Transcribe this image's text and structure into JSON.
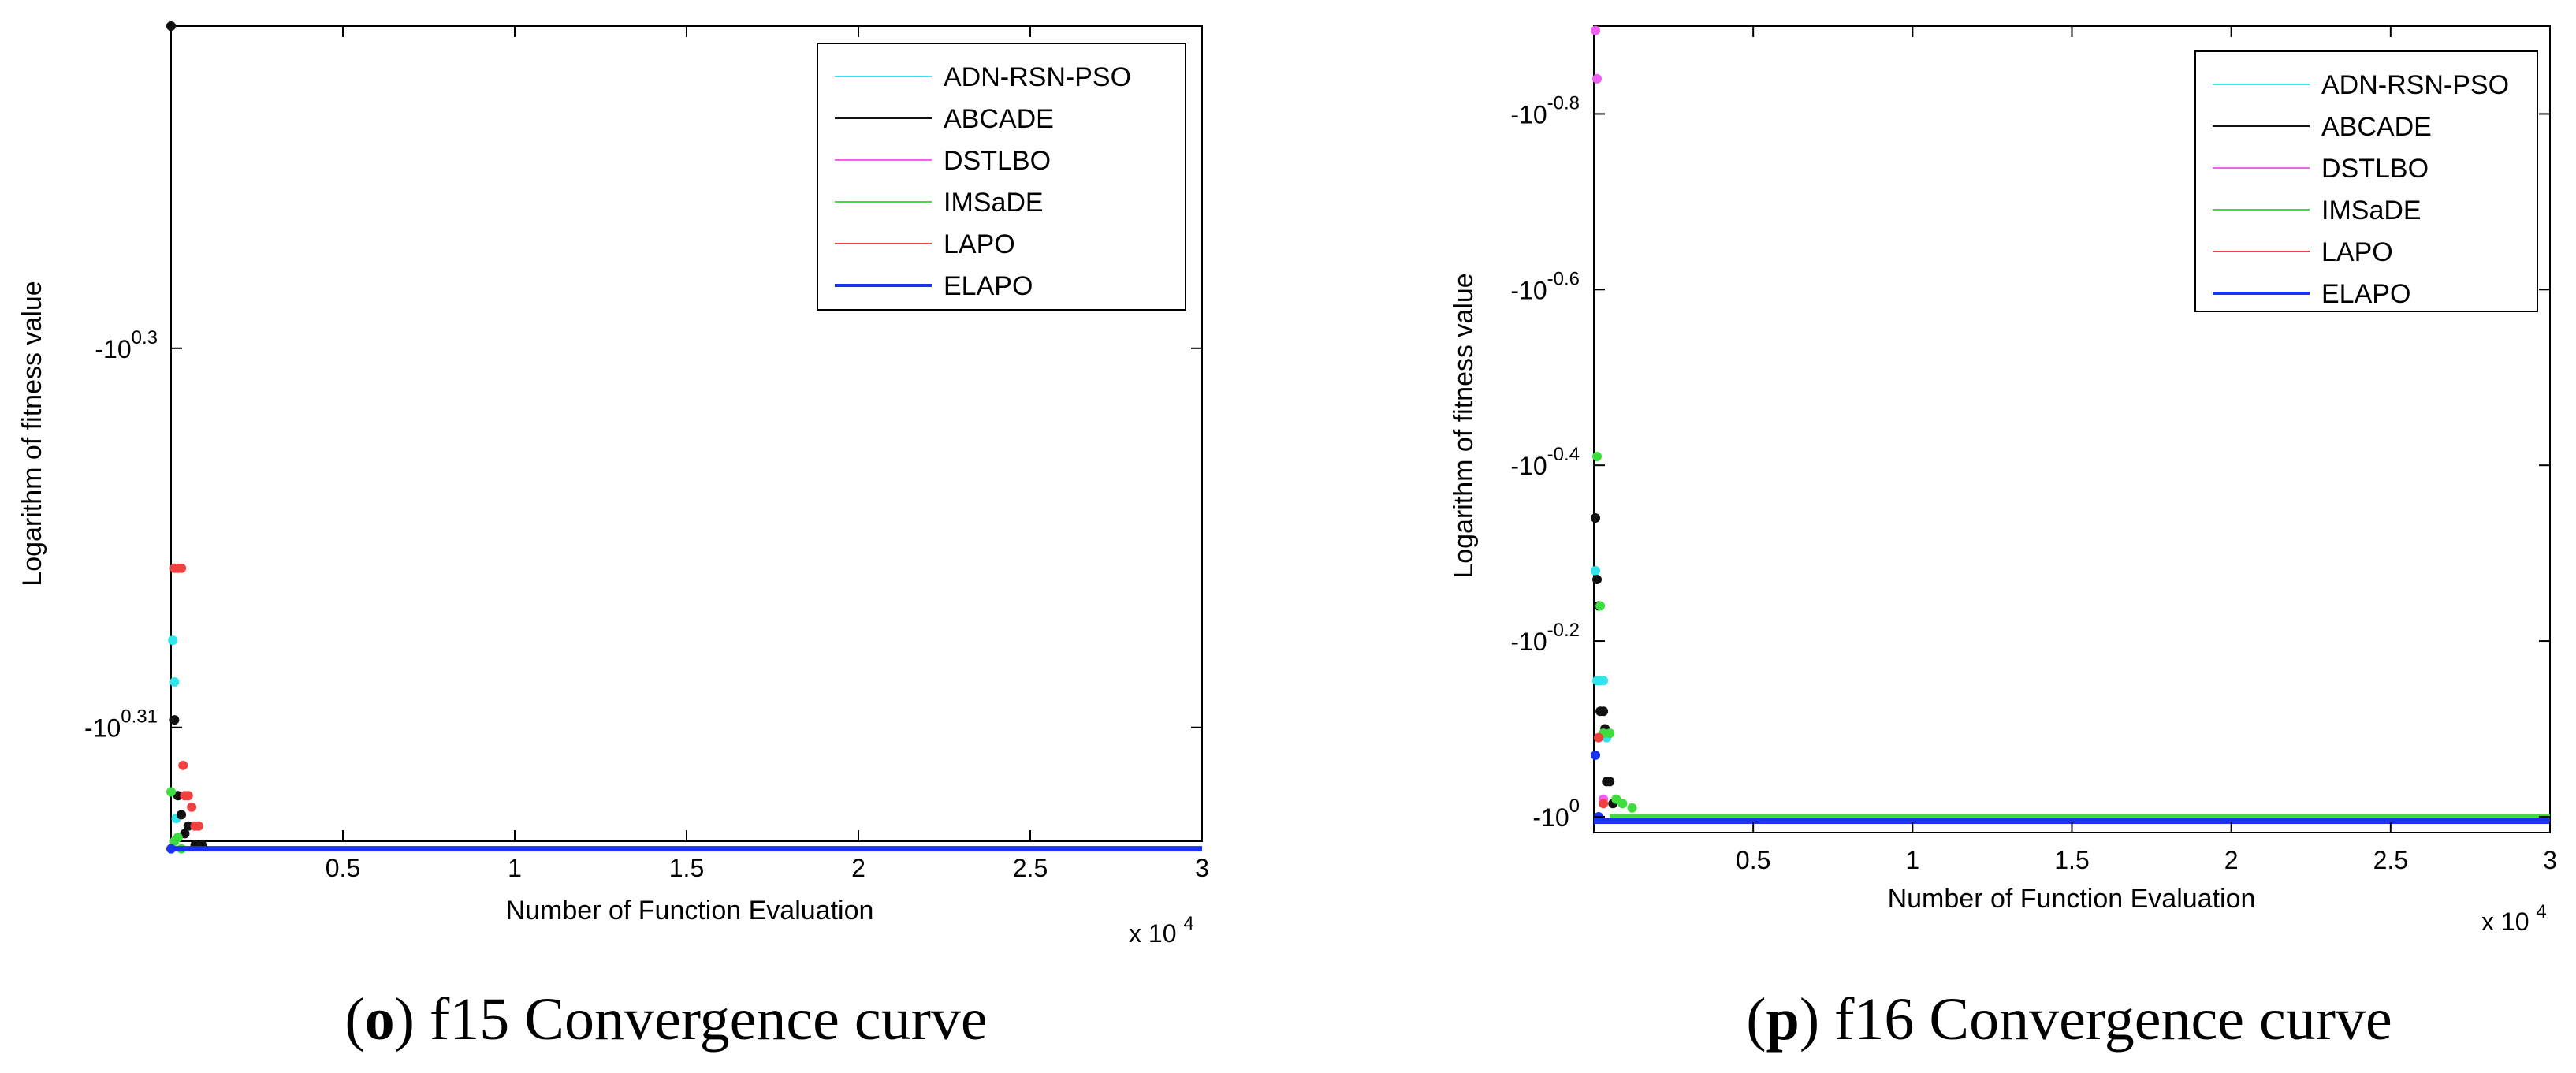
{
  "chart_data": [
    {
      "type": "scatter",
      "caption_letter": "o",
      "caption_text": " f15 Convergence curve",
      "xlabel": "Number of Function Evaluation",
      "ylabel": "Logarithm of fitness value",
      "x_multiplier": "x 10",
      "x_multiplier_exp": "4",
      "xlim": [
        0,
        30000
      ],
      "y_exp_lim": [
        0.313,
        0.2915
      ],
      "x_ticks": [
        {
          "value": 5000,
          "label": "0.5"
        },
        {
          "value": 10000,
          "label": "1"
        },
        {
          "value": 15000,
          "label": "1.5"
        },
        {
          "value": 20000,
          "label": "2"
        },
        {
          "value": 25000,
          "label": "2.5"
        },
        {
          "value": 30000,
          "label": "3"
        }
      ],
      "y_ticks": [
        {
          "exp": 0.3,
          "base": "-10",
          "sup": "0.3"
        },
        {
          "exp": 0.31,
          "base": "-10",
          "sup": "0.31"
        }
      ],
      "series": [
        {
          "name": "ADN-RSN-PSO",
          "color": "#2fe4ea",
          "line_width": 2,
          "points": [
            [
              50,
              0.3077
            ],
            [
              100,
              0.3088
            ],
            [
              150,
              0.3124
            ],
            [
              200,
              0.3129
            ]
          ]
        },
        {
          "name": "ABCADE",
          "color": "#111111",
          "line_width": 2,
          "points": [
            [
              0,
              0.2915
            ],
            [
              100,
              0.3098
            ],
            [
              200,
              0.3118
            ],
            [
              300,
              0.3123
            ],
            [
              400,
              0.3128
            ],
            [
              500,
              0.3126
            ],
            [
              700,
              0.3131
            ],
            [
              900,
              0.3131
            ]
          ]
        },
        {
          "name": "DSTLBO",
          "color": "#f060f0",
          "line_width": 2,
          "points": []
        },
        {
          "name": "IMSaDE",
          "color": "#3ddd3d",
          "line_width": 2,
          "points": [
            [
              0,
              0.3117
            ],
            [
              100,
              0.313
            ],
            [
              200,
              0.3129
            ],
            [
              300,
              0.3132
            ]
          ]
        },
        {
          "name": "LAPO",
          "color": "#f04040",
          "line_width": 2,
          "points": [
            [
              100,
              0.3058
            ],
            [
              200,
              0.3058
            ],
            [
              300,
              0.3058
            ],
            [
              350,
              0.311
            ],
            [
              400,
              0.3118
            ],
            [
              500,
              0.3118
            ],
            [
              600,
              0.3121
            ],
            [
              700,
              0.3126
            ],
            [
              800,
              0.3126
            ]
          ]
        },
        {
          "name": "ELAPO",
          "color": "#1a33ee",
          "line_width": 4,
          "points": [
            [
              0,
              0.3132
            ]
          ],
          "line_from": 0,
          "line_value": 0.3132
        }
      ]
    },
    {
      "type": "scatter",
      "caption_letter": "p",
      "caption_text": " f16 Convergence curve",
      "xlabel": "Number of Function Evaluation",
      "ylabel": "Logarithm of fitness value",
      "x_multiplier": "x 10",
      "x_multiplier_exp": "4",
      "xlim": [
        0,
        30000
      ],
      "y_exp_lim": [
        -0.018,
        0.9
      ],
      "x_ticks": [
        {
          "value": 5000,
          "label": "0.5"
        },
        {
          "value": 10000,
          "label": "1"
        },
        {
          "value": 15000,
          "label": "1.5"
        },
        {
          "value": 20000,
          "label": "2"
        },
        {
          "value": 25000,
          "label": "2.5"
        },
        {
          "value": 30000,
          "label": "3"
        }
      ],
      "y_ticks": [
        {
          "exp": 0.0,
          "base": "-10",
          "sup": "0"
        },
        {
          "exp": 0.2,
          "base": "-10",
          "sup": "-0.2"
        },
        {
          "exp": 0.4,
          "base": "-10",
          "sup": "-0.4"
        },
        {
          "exp": 0.6,
          "base": "-10",
          "sup": "-0.6"
        },
        {
          "exp": 0.8,
          "base": "-10",
          "sup": "-0.8"
        }
      ],
      "series": [
        {
          "name": "ADN-RSN-PSO",
          "color": "#2fe4ea",
          "line_width": 2,
          "points": [
            [
              50,
              0.28
            ],
            [
              100,
              0.155
            ],
            [
              200,
              0.155
            ],
            [
              300,
              0.155
            ],
            [
              400,
              0.09
            ]
          ]
        },
        {
          "name": "ABCADE",
          "color": "#111111",
          "line_width": 2,
          "points": [
            [
              50,
              0.34
            ],
            [
              100,
              0.27
            ],
            [
              150,
              0.24
            ],
            [
              200,
              0.12
            ],
            [
              300,
              0.12
            ],
            [
              350,
              0.1
            ],
            [
              400,
              0.04
            ],
            [
              500,
              0.04
            ],
            [
              600,
              0.015
            ]
          ]
        },
        {
          "name": "DSTLBO",
          "color": "#f060f0",
          "line_width": 2,
          "points": [
            [
              50,
              0.895
            ],
            [
              100,
              0.84
            ],
            [
              300,
              0.02
            ]
          ]
        },
        {
          "name": "IMSaDE",
          "color": "#3ddd3d",
          "line_width": 2,
          "points": [
            [
              100,
              0.41
            ],
            [
              200,
              0.24
            ],
            [
              300,
              0.095
            ],
            [
              500,
              0.095
            ],
            [
              700,
              0.02
            ],
            [
              900,
              0.015
            ],
            [
              1200,
              0.01
            ]
          ],
          "line_from": 500,
          "line_value": 0.001
        },
        {
          "name": "LAPO",
          "color": "#f04040",
          "line_width": 2,
          "points": [
            [
              150,
              0.09
            ],
            [
              300,
              0.015
            ]
          ]
        },
        {
          "name": "ELAPO",
          "color": "#1a33ee",
          "line_width": 4,
          "points": [
            [
              50,
              0.07
            ],
            [
              150,
              0.0
            ]
          ],
          "line_from": 0,
          "line_value": -0.005
        }
      ]
    }
  ]
}
